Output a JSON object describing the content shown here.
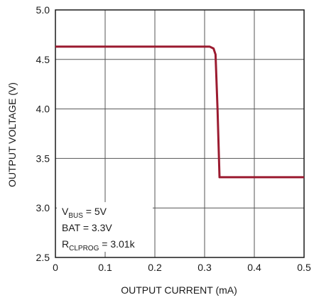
{
  "chart_data": {
    "type": "line",
    "title": "",
    "xlabel": "OUTPUT CURRENT (mA)",
    "ylabel": "OUTPUT VOLTAGE (V)",
    "xlim": [
      0,
      0.5
    ],
    "ylim": [
      2.5,
      5.0
    ],
    "x_ticks": [
      "0",
      "0.1",
      "0.2",
      "0.3",
      "0.4",
      "0.5"
    ],
    "y_ticks": [
      "2.5",
      "3.0",
      "3.5",
      "4.0",
      "4.5",
      "5.0"
    ],
    "grid": true,
    "series": [
      {
        "color": "#9b1b30",
        "x": [
          0,
          0.31,
          0.318,
          0.322,
          0.326,
          0.33,
          0.5
        ],
        "y": [
          4.63,
          4.63,
          4.61,
          4.55,
          4.0,
          3.31,
          3.31
        ]
      }
    ],
    "annotation": {
      "line1_main": "V",
      "line1_sub": "BUS",
      "line1_rest": " = 5V",
      "line2": "BAT = 3.3V",
      "line3_main": "R",
      "line3_sub": "CLPROG",
      "line3_rest": " = 3.01k"
    }
  }
}
